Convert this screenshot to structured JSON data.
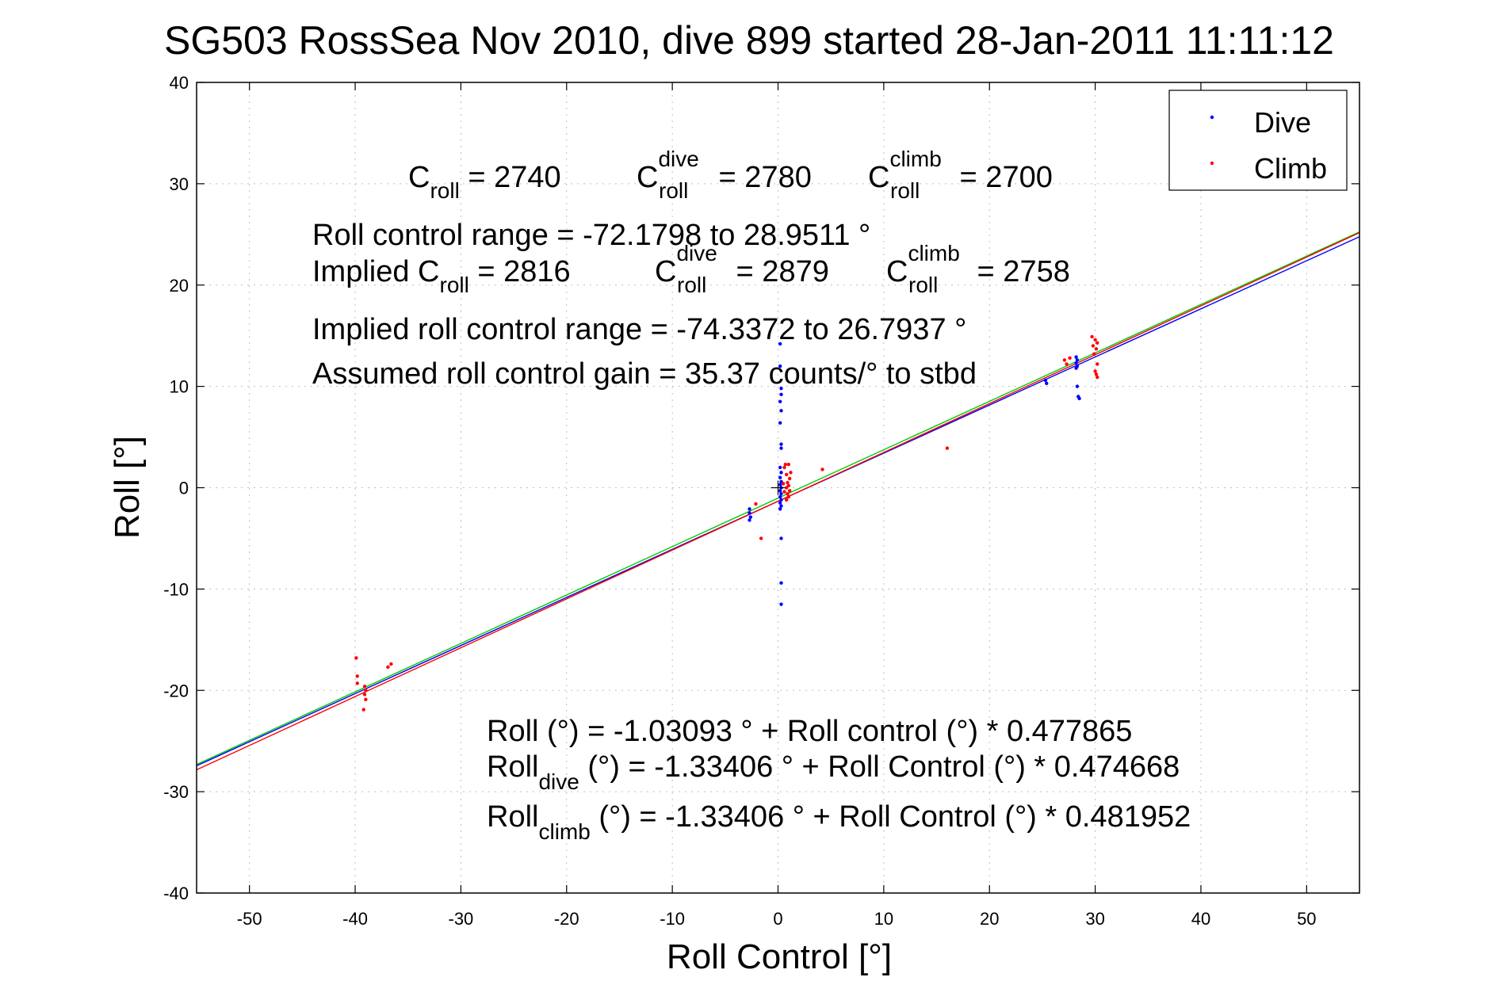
{
  "chart_data": {
    "type": "scatter",
    "title": "SG503 RossSea Nov 2010, dive 899 started 28-Jan-2011 11:11:12",
    "xlabel": "Roll Control [°]",
    "ylabel": "Roll [°]",
    "xlim": [
      -55,
      55
    ],
    "ylim": [
      -40,
      40
    ],
    "grid": true,
    "legend_position": "top-right",
    "x_ticks": [
      "-50",
      "-40",
      "-30",
      "-20",
      "-10",
      "0",
      "10",
      "20",
      "30",
      "40",
      "50"
    ],
    "x_tick_values": [
      -50,
      -40,
      -30,
      -20,
      -10,
      0,
      10,
      20,
      30,
      40,
      50
    ],
    "y_ticks": [
      "40",
      "30",
      "20",
      "10",
      "0",
      "-10",
      "-20",
      "-30",
      "-40"
    ],
    "y_tick_values": [
      40,
      30,
      20,
      10,
      0,
      -10,
      -20,
      -30,
      -40
    ],
    "series": [
      {
        "name": "Dive",
        "color": "#0000ff",
        "points": [
          [
            0.2,
            14.2
          ],
          [
            0.2,
            12.0
          ],
          [
            0.3,
            9.8
          ],
          [
            0.3,
            9.2
          ],
          [
            0.2,
            8.5
          ],
          [
            0.3,
            7.6
          ],
          [
            0.2,
            6.4
          ],
          [
            0.3,
            4.3
          ],
          [
            0.3,
            3.9
          ],
          [
            0.2,
            2.0
          ],
          [
            0.3,
            1.5
          ],
          [
            0.2,
            1.0
          ],
          [
            0.3,
            0.6
          ],
          [
            0.2,
            0.3
          ],
          [
            0.3,
            0.0
          ],
          [
            0.2,
            -0.3
          ],
          [
            0.3,
            -0.6
          ],
          [
            0.2,
            -0.9
          ],
          [
            0.3,
            -1.2
          ],
          [
            0.2,
            -1.5
          ],
          [
            0.3,
            -1.8
          ],
          [
            0.2,
            -2.1
          ],
          [
            0.3,
            -5.0
          ],
          [
            0.3,
            -9.4
          ],
          [
            0.3,
            -11.5
          ],
          [
            -2.7,
            -2.1
          ],
          [
            -2.7,
            -2.5
          ],
          [
            -2.6,
            -2.9
          ],
          [
            -2.7,
            -3.2
          ],
          [
            25.3,
            10.6
          ],
          [
            25.4,
            10.3
          ],
          [
            28.2,
            12.9
          ],
          [
            28.3,
            12.6
          ],
          [
            28.2,
            12.3
          ],
          [
            28.3,
            12.0
          ],
          [
            28.2,
            11.8
          ],
          [
            28.3,
            10.0
          ],
          [
            28.4,
            9.0
          ],
          [
            28.5,
            8.8
          ]
        ]
      },
      {
        "name": "Climb",
        "color": "#ff0000",
        "points": [
          [
            0.7,
            2.3
          ],
          [
            1.0,
            2.3
          ],
          [
            0.8,
            1.3
          ],
          [
            1.1,
            0.9
          ],
          [
            0.9,
            0.5
          ],
          [
            1.0,
            0.2
          ],
          [
            0.8,
            0.0
          ],
          [
            1.1,
            -0.3
          ],
          [
            0.9,
            -0.6
          ],
          [
            1.0,
            -0.9
          ],
          [
            0.8,
            -1.2
          ],
          [
            0.6,
            -0.4
          ],
          [
            0.5,
            0.4
          ],
          [
            0.6,
            2.0
          ],
          [
            1.2,
            1.5
          ],
          [
            4.2,
            1.8
          ],
          [
            -1.6,
            -5.0
          ],
          [
            -2.1,
            -1.6
          ],
          [
            16.0,
            3.9
          ],
          [
            27.1,
            12.6
          ],
          [
            27.3,
            12.2
          ],
          [
            27.6,
            12.8
          ],
          [
            29.7,
            14.9
          ],
          [
            30.0,
            14.6
          ],
          [
            30.2,
            14.3
          ],
          [
            29.8,
            14.0
          ],
          [
            30.1,
            13.7
          ],
          [
            29.9,
            13.2
          ],
          [
            30.2,
            12.2
          ],
          [
            30.0,
            11.5
          ],
          [
            30.1,
            11.2
          ],
          [
            30.2,
            10.9
          ],
          [
            -39.9,
            -16.8
          ],
          [
            -39.8,
            -18.6
          ],
          [
            -39.8,
            -19.3
          ],
          [
            -39.1,
            -19.6
          ],
          [
            -39.0,
            -20.0
          ],
          [
            -39.1,
            -20.4
          ],
          [
            -39.0,
            -20.9
          ],
          [
            -39.2,
            -21.9
          ],
          [
            -36.6,
            -17.4
          ],
          [
            -36.9,
            -17.7
          ]
        ]
      }
    ],
    "fit_lines": [
      {
        "name": "Roll",
        "color": "#00cc00",
        "intercept": -1.03093,
        "slope": 0.477865
      },
      {
        "name": "Roll_dive",
        "color": "#0000ff",
        "intercept": -1.33406,
        "slope": 0.474668
      },
      {
        "name": "Roll_climb",
        "color": "#ff0000",
        "intercept": -1.33406,
        "slope": 0.481952
      }
    ],
    "annotations": {
      "croll_label": "C",
      "croll_sub": "roll",
      "croll_value": " = 2740",
      "croll_dive_sup": "dive",
      "croll_dive_value": " = 2780",
      "croll_climb_sup": "climb",
      "croll_climb_value": " = 2700",
      "roll_control_range": "Roll control range = -72.1798 to 28.9511 °",
      "implied_prefix": "Implied C",
      "implied_croll_value": " = 2816",
      "implied_croll_dive_value": " = 2879",
      "implied_croll_climb_value": " = 2758",
      "implied_roll_control_range": "Implied roll control range = -74.3372 to 26.7937 °",
      "assumed_gain": "Assumed roll control gain = 35.37 counts/° to stbd",
      "fit_all": "Roll (°) = -1.03093 ° + Roll control (°) * 0.477865",
      "fit_dive_prefix": "Roll",
      "fit_dive_sub": "dive",
      "fit_dive_rest": " (°) = -1.33406 ° + Roll Control (°) * 0.474668",
      "fit_climb_prefix": "Roll",
      "fit_climb_sub": "climb",
      "fit_climb_rest": " (°) = -1.33406 ° + Roll Control (°) * 0.481952"
    }
  }
}
